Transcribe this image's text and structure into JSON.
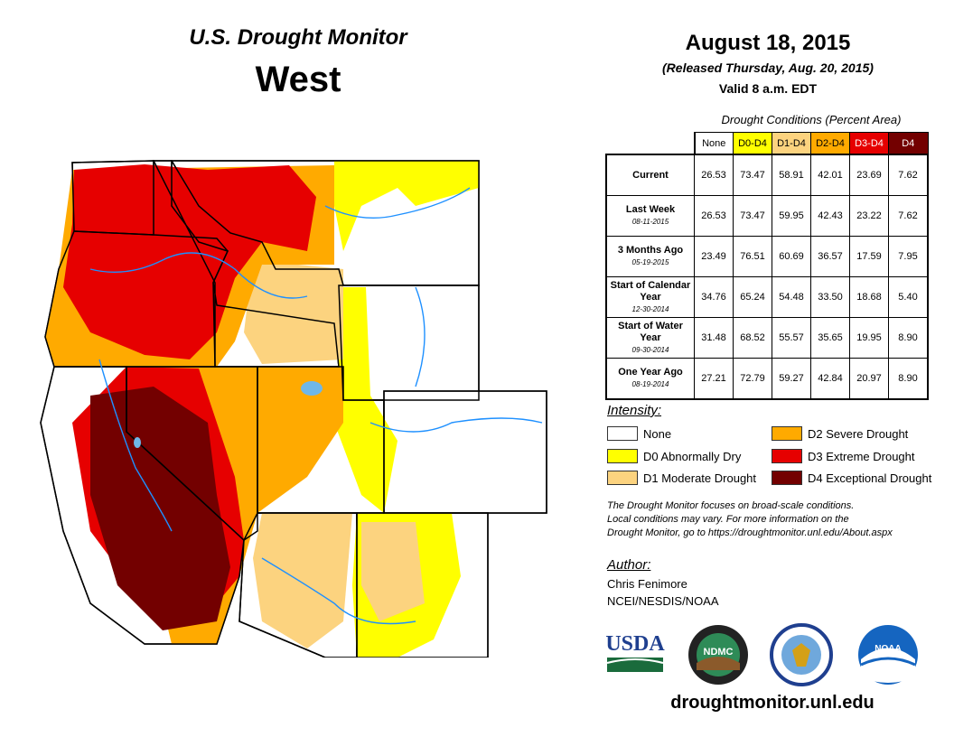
{
  "header": {
    "title": "U.S. Drought Monitor",
    "region": "West",
    "date": "August 18, 2015",
    "released": "(Released Thursday, Aug. 20, 2015)",
    "valid": "Valid 8 a.m. EDT"
  },
  "table": {
    "caption": "Drought Conditions (Percent Area)",
    "columns": [
      "None",
      "D0-D4",
      "D1-D4",
      "D2-D4",
      "D3-D4",
      "D4"
    ],
    "rows": [
      {
        "label": "Current",
        "date": "",
        "values": [
          "26.53",
          "73.47",
          "58.91",
          "42.01",
          "23.69",
          "7.62"
        ]
      },
      {
        "label": "Last Week",
        "date": "08-11-2015",
        "values": [
          "26.53",
          "73.47",
          "59.95",
          "42.43",
          "23.22",
          "7.62"
        ]
      },
      {
        "label": "3 Months Ago",
        "date": "05-19-2015",
        "values": [
          "23.49",
          "76.51",
          "60.69",
          "36.57",
          "17.59",
          "7.95"
        ]
      },
      {
        "label": "Start of Calendar Year",
        "date": "12-30-2014",
        "values": [
          "34.76",
          "65.24",
          "54.48",
          "33.50",
          "18.68",
          "5.40"
        ]
      },
      {
        "label": "Start of Water Year",
        "date": "09-30-2014",
        "values": [
          "31.48",
          "68.52",
          "55.57",
          "35.65",
          "19.95",
          "8.90"
        ]
      },
      {
        "label": "One Year Ago",
        "date": "08-19-2014",
        "values": [
          "27.21",
          "72.79",
          "59.27",
          "42.84",
          "20.97",
          "8.90"
        ]
      }
    ]
  },
  "legend": {
    "title": "Intensity:",
    "items": [
      {
        "label": "None",
        "color": "#ffffff"
      },
      {
        "label": "D0 Abnormally Dry",
        "color": "#ffff00"
      },
      {
        "label": "D1 Moderate Drought",
        "color": "#fcd37f"
      },
      {
        "label": "D2 Severe Drought",
        "color": "#ffaa00"
      },
      {
        "label": "D3 Extreme Drought",
        "color": "#e60000"
      },
      {
        "label": "D4 Exceptional Drought",
        "color": "#730000"
      }
    ]
  },
  "note": {
    "line1": "The Drought Monitor focuses on broad-scale conditions.",
    "line2": "Local conditions may vary. For more information on the",
    "line3": "Drought Monitor, go to https://droughtmonitor.unl.edu/About.aspx"
  },
  "author": {
    "title": "Author:",
    "name": "Chris Fenimore",
    "org": "NCEI/NESDIS/NOAA"
  },
  "logos": {
    "usda": "USDA",
    "ndmc": "NDMC",
    "noaa": "NOAA"
  },
  "footer": {
    "url": "droughtmonitor.unl.edu"
  }
}
